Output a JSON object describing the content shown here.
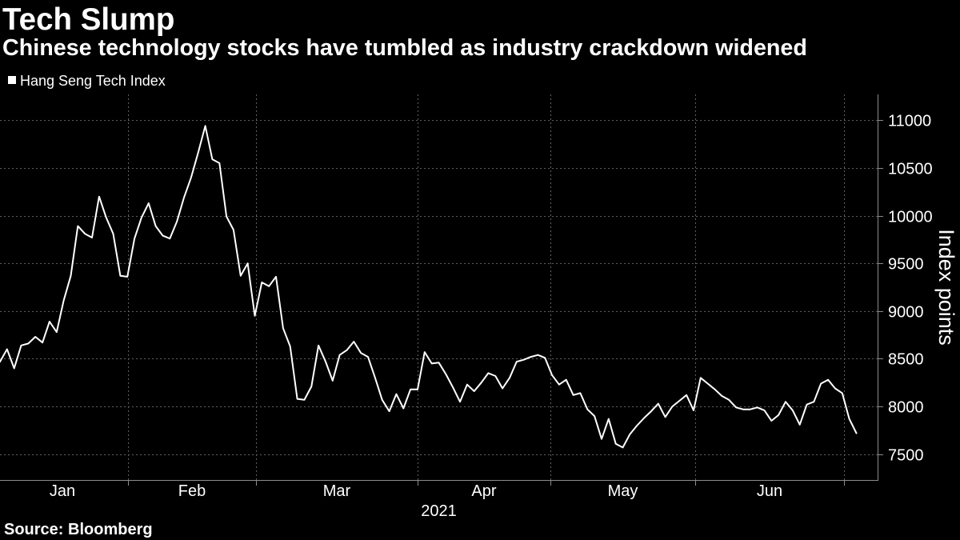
{
  "colors": {
    "background": "#000000",
    "text": "#ffffff",
    "series": "#ffffff",
    "grid": "#5f5f5f",
    "axis": "#8c8c8c"
  },
  "chart_data": {
    "type": "line",
    "title": "Tech Slump",
    "subtitle": "Chinese technology stocks have tumbled as industry crackdown widened",
    "series": [
      {
        "name": "Hang Seng Tech Index",
        "values": [
          8470,
          8600,
          8400,
          8640,
          8660,
          8730,
          8670,
          8890,
          8780,
          9110,
          9370,
          9890,
          9810,
          9770,
          10200,
          9980,
          9810,
          9370,
          9360,
          9760,
          9980,
          10130,
          9890,
          9790,
          9760,
          9940,
          10190,
          10400,
          10660,
          10940,
          10590,
          10550,
          9990,
          9850,
          9370,
          9500,
          8950,
          9300,
          9260,
          9360,
          8820,
          8630,
          8080,
          8070,
          8210,
          8640,
          8470,
          8270,
          8540,
          8590,
          8680,
          8560,
          8520,
          8300,
          8070,
          7950,
          8130,
          7980,
          8180,
          8180,
          8570,
          8450,
          8460,
          8340,
          8200,
          8050,
          8230,
          8160,
          8250,
          8350,
          8320,
          8190,
          8300,
          8470,
          8490,
          8520,
          8540,
          8510,
          8330,
          8230,
          8280,
          8120,
          8140,
          7970,
          7900,
          7660,
          7870,
          7610,
          7570,
          7710,
          7800,
          7880,
          7950,
          8030,
          7890,
          8000,
          8060,
          8120,
          7960,
          8300,
          8240,
          8180,
          8110,
          8070,
          7990,
          7970,
          7970,
          7990,
          7960,
          7850,
          7910,
          8050,
          7960,
          7810,
          8020,
          8050,
          8240,
          8280,
          8190,
          8140,
          7870,
          7720
        ]
      }
    ],
    "xlabel": "2021",
    "ylabel": "Index points",
    "xlim": [
      0,
      124
    ],
    "ylim": [
      7230,
      11270
    ],
    "yticks": [
      7500,
      8000,
      8500,
      9000,
      9500,
      10000,
      10500,
      11000
    ],
    "months": [
      "Jan",
      "Feb",
      "Mar",
      "Apr",
      "May",
      "Jun"
    ],
    "month_boundaries": [
      -0.45,
      18.09,
      36.17,
      59.0,
      77.77,
      98.23,
      119.25
    ],
    "grid": true
  },
  "source": "Source: Bloomberg"
}
